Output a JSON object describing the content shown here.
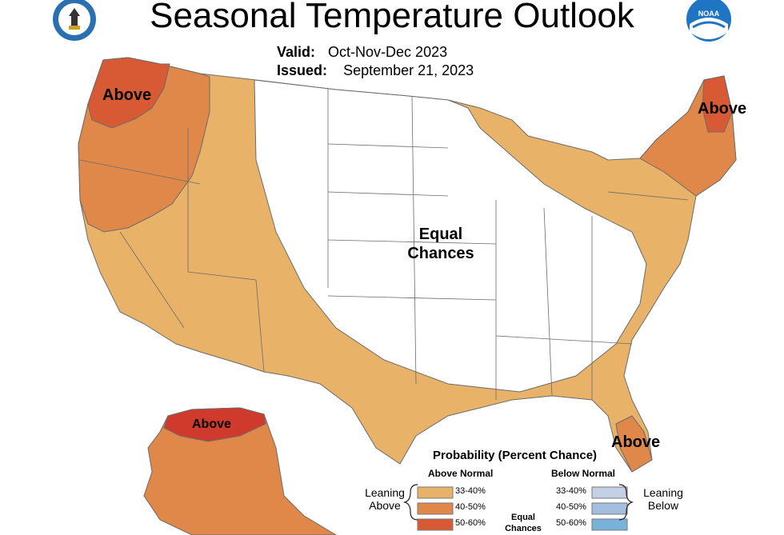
{
  "header": {
    "title": "Seasonal Temperature Outlook",
    "valid_label": "Valid:",
    "valid_value": "Oct-Nov-Dec 2023",
    "issued_label": "Issued:",
    "issued_value": "September 21, 2023"
  },
  "logos": {
    "left": "commerce-seal-icon",
    "right": "noaa-logo-icon",
    "right_text": "NOAA"
  },
  "map_labels": {
    "northwest": "Above",
    "northeast": "Above",
    "center_line1": "Equal",
    "center_line2": "Chances",
    "florida": "Above",
    "alaska": "Above"
  },
  "legend": {
    "title": "Probability (Percent Chance)",
    "above_header": "Above Normal",
    "below_header": "Below Normal",
    "leaning_above_line1": "Leaning",
    "leaning_above_line2": "Above",
    "leaning_below_line1": "Leaning",
    "leaning_below_line2": "Below",
    "equal_line1": "Equal",
    "equal_line2": "Chances",
    "above_rows": [
      {
        "label": "33-40%",
        "color": "#e8b368"
      },
      {
        "label": "40-50%",
        "color": "#e0874a"
      },
      {
        "label": "50-60%",
        "color": "#d85a35"
      }
    ],
    "below_rows": [
      {
        "label": "33-40%",
        "color": "#c3d0e6"
      },
      {
        "label": "40-50%",
        "color": "#a2bfe0"
      },
      {
        "label": "50-60%",
        "color": "#79b3dc"
      }
    ]
  },
  "colors": {
    "above_33_40": "#e8b368",
    "above_40_50": "#e0874a",
    "above_50_60": "#d85a35",
    "alaska_top": "#d03a2c",
    "equal_chances": "#ffffff"
  }
}
